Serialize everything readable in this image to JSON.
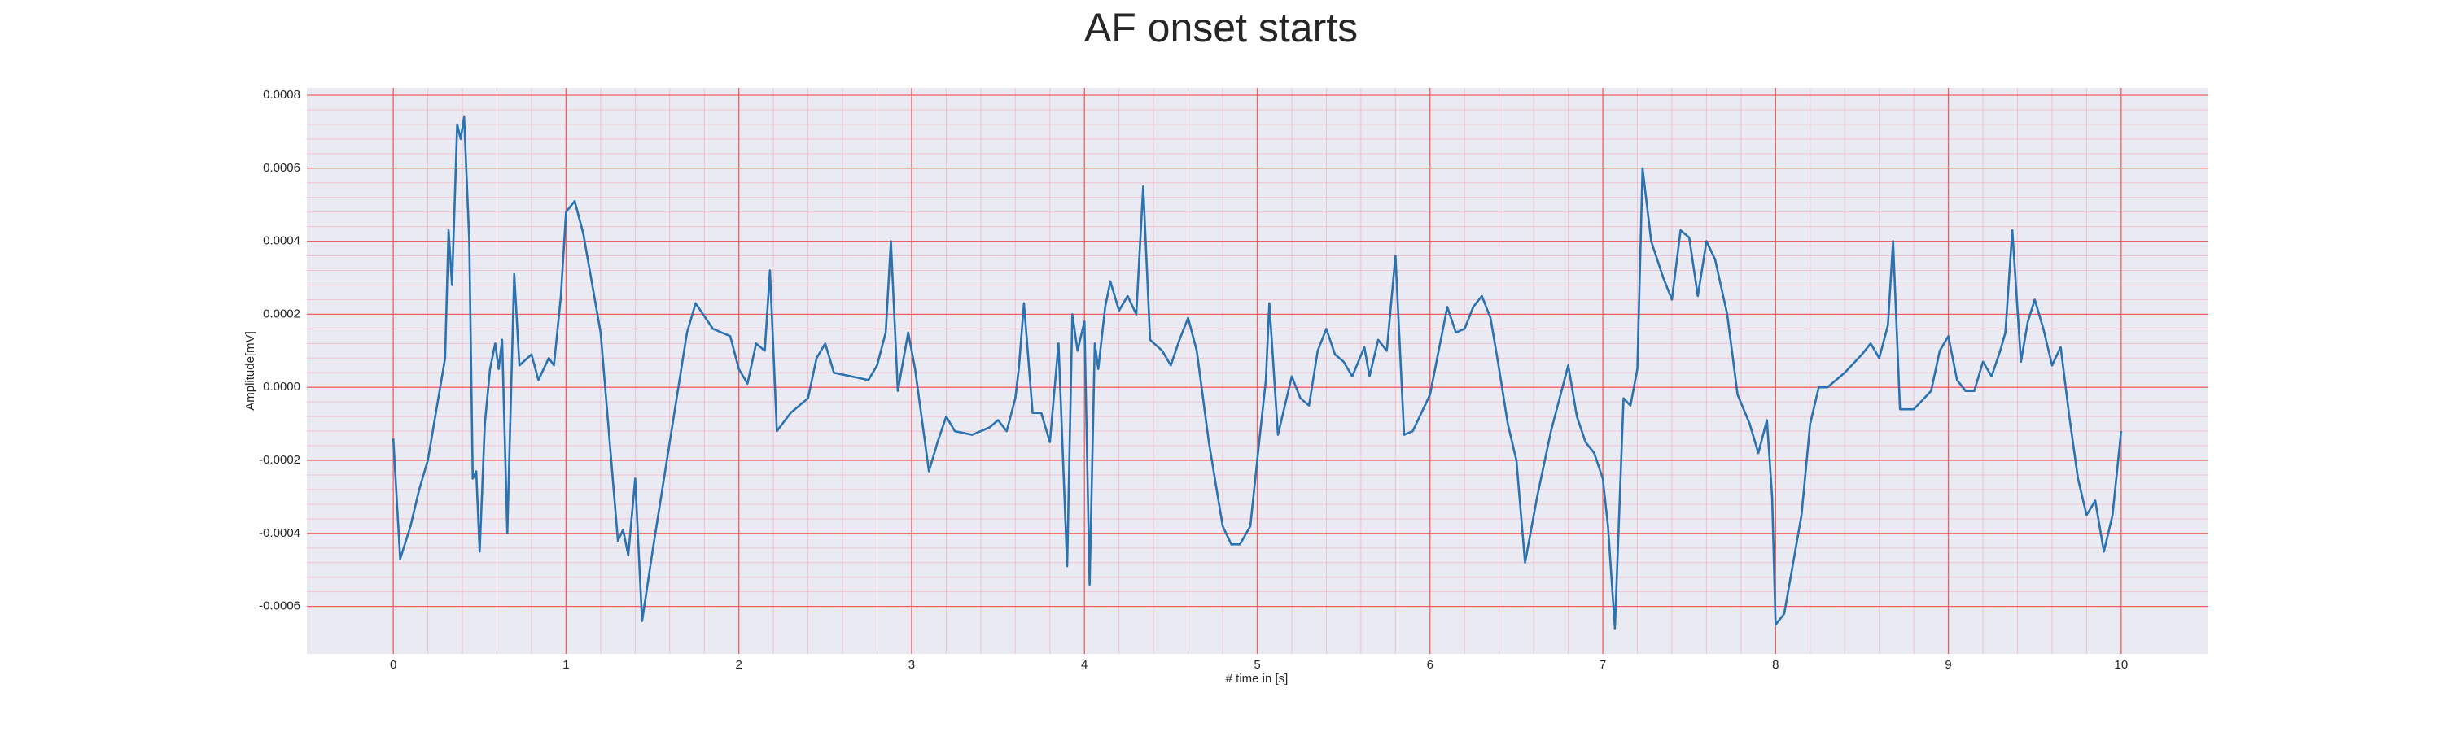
{
  "chart_data": {
    "type": "line",
    "title": "AF onset starts",
    "x_label": "# time in [s]",
    "y_label": "Amplitude[mV]",
    "color": "#2a72b0",
    "grid": true,
    "minor_grid": true,
    "xlim": [
      -0.5,
      10.5
    ],
    "ylim": [
      -0.00073,
      0.00082
    ],
    "xticks": [
      0,
      1,
      2,
      3,
      4,
      5,
      6,
      7,
      8,
      9,
      10
    ],
    "yticks": [
      -0.0006,
      -0.0004,
      -0.0002,
      {
        "value": 0,
        "label": "0.0000"
      },
      0.0002,
      0.0004,
      0.0006,
      0.0008
    ],
    "x": [
      0.0,
      0.04,
      0.1,
      0.15,
      0.2,
      0.25,
      0.3,
      0.32,
      0.34,
      0.37,
      0.39,
      0.41,
      0.44,
      0.46,
      0.48,
      0.5,
      0.53,
      0.56,
      0.59,
      0.61,
      0.63,
      0.66,
      0.7,
      0.73,
      0.8,
      0.84,
      0.9,
      0.93,
      0.97,
      1.0,
      1.05,
      1.1,
      1.2,
      1.3,
      1.33,
      1.36,
      1.4,
      1.44,
      1.5,
      1.6,
      1.7,
      1.75,
      1.85,
      1.95,
      2.0,
      2.05,
      2.1,
      2.15,
      2.18,
      2.22,
      2.3,
      2.4,
      2.45,
      2.5,
      2.55,
      2.65,
      2.75,
      2.8,
      2.85,
      2.88,
      2.92,
      2.98,
      3.02,
      3.1,
      3.15,
      3.2,
      3.25,
      3.35,
      3.45,
      3.5,
      3.55,
      3.6,
      3.62,
      3.65,
      3.7,
      3.75,
      3.8,
      3.85,
      3.9,
      3.93,
      3.96,
      4.0,
      4.03,
      4.06,
      4.08,
      4.12,
      4.15,
      4.2,
      4.25,
      4.3,
      4.34,
      4.38,
      4.45,
      4.5,
      4.55,
      4.6,
      4.65,
      4.72,
      4.8,
      4.85,
      4.9,
      4.96,
      5.0,
      5.05,
      5.07,
      5.12,
      5.2,
      5.25,
      5.3,
      5.35,
      5.4,
      5.45,
      5.5,
      5.55,
      5.62,
      5.65,
      5.7,
      5.75,
      5.8,
      5.85,
      5.9,
      5.95,
      6.0,
      6.05,
      6.1,
      6.15,
      6.2,
      6.25,
      6.3,
      6.35,
      6.4,
      6.45,
      6.5,
      6.55,
      6.62,
      6.7,
      6.8,
      6.85,
      6.9,
      6.95,
      7.0,
      7.03,
      7.07,
      7.12,
      7.16,
      7.2,
      7.23,
      7.28,
      7.35,
      7.4,
      7.45,
      7.5,
      7.55,
      7.6,
      7.65,
      7.72,
      7.78,
      7.85,
      7.9,
      7.95,
      7.98,
      8.0,
      8.05,
      8.15,
      8.2,
      8.25,
      8.3,
      8.4,
      8.5,
      8.55,
      8.6,
      8.65,
      8.68,
      8.72,
      8.8,
      8.9,
      8.95,
      9.0,
      9.05,
      9.1,
      9.15,
      9.2,
      9.25,
      9.3,
      9.33,
      9.37,
      9.42,
      9.46,
      9.5,
      9.55,
      9.6,
      9.65,
      9.7,
      9.75,
      9.8,
      9.85,
      9.9,
      9.95,
      10.0
    ],
    "values": [
      -0.00014,
      -0.00047,
      -0.00038,
      -0.00028,
      -0.0002,
      -6e-05,
      8e-05,
      0.00043,
      0.00028,
      0.00072,
      0.00068,
      0.00074,
      0.0004,
      -0.00025,
      -0.00023,
      -0.00045,
      -0.0001,
      5e-05,
      0.00012,
      5e-05,
      0.00013,
      -0.0004,
      0.00031,
      6e-05,
      9e-05,
      2e-05,
      8e-05,
      6e-05,
      0.00025,
      0.00048,
      0.00051,
      0.00042,
      0.00015,
      -0.00042,
      -0.00039,
      -0.00046,
      -0.00025,
      -0.00064,
      -0.00045,
      -0.00015,
      0.00015,
      0.00023,
      0.00016,
      0.00014,
      5e-05,
      1e-05,
      0.00012,
      0.0001,
      0.00032,
      -0.00012,
      -7e-05,
      -3e-05,
      8e-05,
      0.00012,
      4e-05,
      3e-05,
      2e-05,
      6e-05,
      0.00015,
      0.0004,
      -1e-05,
      0.00015,
      5e-05,
      -0.00023,
      -0.00015,
      -8e-05,
      -0.00012,
      -0.00013,
      -0.00011,
      -9e-05,
      -0.00012,
      -3e-05,
      5e-05,
      0.00023,
      -7e-05,
      -7e-05,
      -0.00015,
      0.00012,
      -0.00049,
      0.0002,
      0.0001,
      0.00018,
      -0.00054,
      0.00012,
      5e-05,
      0.00022,
      0.00029,
      0.00021,
      0.00025,
      0.0002,
      0.00055,
      0.00013,
      0.0001,
      6e-05,
      0.00013,
      0.00019,
      0.0001,
      -0.00015,
      -0.00038,
      -0.00043,
      -0.00043,
      -0.00038,
      -0.0002,
      2e-05,
      0.00023,
      -0.00013,
      3e-05,
      -3e-05,
      -5e-05,
      0.0001,
      0.00016,
      9e-05,
      7e-05,
      3e-05,
      0.00011,
      3e-05,
      0.00013,
      0.0001,
      0.00036,
      -0.00013,
      -0.00012,
      -7e-05,
      -2e-05,
      0.0001,
      0.00022,
      0.00015,
      0.00016,
      0.00022,
      0.00025,
      0.00019,
      5e-05,
      -0.0001,
      -0.0002,
      -0.00048,
      -0.0003,
      -0.00012,
      6e-05,
      -8e-05,
      -0.00015,
      -0.00018,
      -0.00025,
      -0.00038,
      -0.00066,
      -3e-05,
      -5e-05,
      5e-05,
      0.0006,
      0.0004,
      0.0003,
      0.00024,
      0.00043,
      0.00041,
      0.00025,
      0.0004,
      0.00035,
      0.0002,
      -2e-05,
      -0.0001,
      -0.00018,
      -9e-05,
      -0.0003,
      -0.00065,
      -0.00062,
      -0.00035,
      -0.0001,
      0.0,
      0.0,
      4e-05,
      9e-05,
      0.00012,
      8e-05,
      0.00017,
      0.0004,
      -6e-05,
      -6e-05,
      -1e-05,
      0.0001,
      0.00014,
      2e-05,
      -1e-05,
      -1e-05,
      7e-05,
      3e-05,
      0.0001,
      0.00015,
      0.00043,
      7e-05,
      0.00018,
      0.00024,
      0.00016,
      6e-05,
      0.00011,
      -8e-05,
      -0.00025,
      -0.00035,
      -0.00031,
      -0.00045,
      -0.00035,
      -0.00012
    ]
  }
}
